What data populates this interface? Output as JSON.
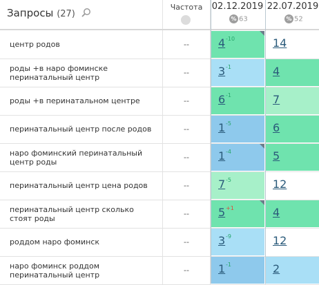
{
  "header": {
    "title": "Запросы",
    "count": "(27)",
    "frequency_label": "Частота",
    "dates": [
      {
        "date": "02.12.2019",
        "pct": "63"
      },
      {
        "date": "22.07.2019",
        "pct": "52"
      }
    ]
  },
  "colors": {
    "green": "#6fe3ae",
    "light_green": "#a7f0c9",
    "light_blue": "#a9dff6",
    "blue": "#8ec9ec",
    "white": "#ffffff",
    "delta_up": "#25a56a",
    "delta_down": "#e04a3a"
  },
  "rows": [
    {
      "query": "центр родов",
      "freq": "--",
      "c1": {
        "pos": "4",
        "delta": "-10",
        "dir": "up",
        "bg": "green",
        "flag": true
      },
      "c2": {
        "pos": "14",
        "bg": "white"
      }
    },
    {
      "query": "роды +в наро фоминске перинатальный центр",
      "freq": "--",
      "c1": {
        "pos": "3",
        "delta": "-1",
        "dir": "up",
        "bg": "light_blue",
        "flag": false
      },
      "c2": {
        "pos": "4",
        "bg": "green"
      }
    },
    {
      "query": "роды +в перинатальном центре",
      "freq": "--",
      "c1": {
        "pos": "6",
        "delta": "-1",
        "dir": "up",
        "bg": "green",
        "flag": false
      },
      "c2": {
        "pos": "7",
        "bg": "light_green"
      }
    },
    {
      "query": "перинатальный центр после родов",
      "freq": "--",
      "c1": {
        "pos": "1",
        "delta": "-5",
        "dir": "up",
        "bg": "blue",
        "flag": false
      },
      "c2": {
        "pos": "6",
        "bg": "green"
      }
    },
    {
      "query": "наро фоминский перинатальный центр роды",
      "freq": "--",
      "c1": {
        "pos": "1",
        "delta": "-4",
        "dir": "up",
        "bg": "blue",
        "flag": true
      },
      "c2": {
        "pos": "5",
        "bg": "green"
      }
    },
    {
      "query": "перинатальный центр цена родов",
      "freq": "--",
      "c1": {
        "pos": "7",
        "delta": "-5",
        "dir": "up",
        "bg": "light_green",
        "flag": false
      },
      "c2": {
        "pos": "12",
        "bg": "white"
      }
    },
    {
      "query": "перинатальный центр сколько стоят роды",
      "freq": "--",
      "c1": {
        "pos": "5",
        "delta": "+1",
        "dir": "down",
        "bg": "green",
        "flag": true
      },
      "c2": {
        "pos": "4",
        "bg": "green"
      }
    },
    {
      "query": "роддом наро фоминск",
      "freq": "--",
      "c1": {
        "pos": "3",
        "delta": "-9",
        "dir": "up",
        "bg": "light_blue",
        "flag": false
      },
      "c2": {
        "pos": "12",
        "bg": "white"
      }
    },
    {
      "query": "наро фоминск роддом перинатальный центр",
      "freq": "--",
      "c1": {
        "pos": "1",
        "delta": "-1",
        "dir": "up",
        "bg": "blue",
        "flag": false
      },
      "c2": {
        "pos": "2",
        "bg": "light_blue"
      }
    }
  ]
}
